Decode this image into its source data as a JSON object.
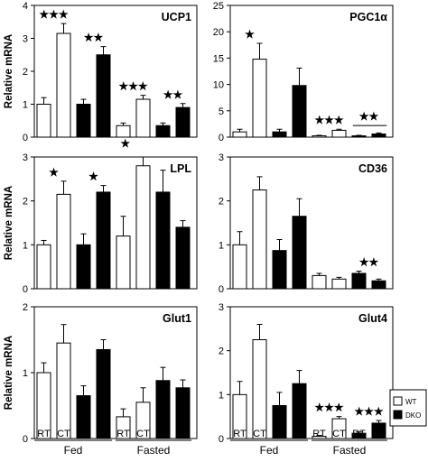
{
  "chart_data": {
    "type": "bar",
    "categories": [
      "RT",
      "CT",
      "RT",
      "CT",
      "RT",
      "CT",
      "RT",
      "CT"
    ],
    "groups": [
      "Fed",
      "Fasted"
    ],
    "series_colors": [
      "#ffffff",
      "#000000"
    ],
    "legend": [
      {
        "label": "WT",
        "color": "#ffffff"
      },
      {
        "label": "DKO",
        "color": "#000000"
      }
    ],
    "legend_position": "right",
    "grid": false,
    "panels": [
      {
        "title": "UCP1",
        "ylabel": "Relative mRNA",
        "ylim": [
          0,
          4
        ],
        "yticks": [
          "0",
          "1",
          "2",
          "3",
          "4"
        ],
        "values": [
          1.0,
          3.15,
          1.0,
          2.5,
          0.35,
          1.15,
          0.35,
          0.9
        ],
        "errors": [
          0.2,
          0.3,
          0.15,
          0.25,
          0.08,
          0.12,
          0.08,
          0.12
        ],
        "stars": [
          {
            "text": "★★★",
            "bar": 0.5
          },
          {
            "text": "★★",
            "bar": 2.5
          },
          {
            "text": "★★★",
            "bar": 4.5
          },
          {
            "text": "★★",
            "bar": 6.5
          }
        ]
      },
      {
        "title": "PGC1α",
        "ylabel": "",
        "ylim": [
          0,
          25
        ],
        "yticks": [
          "0",
          "5",
          "10",
          "15",
          "20",
          "25"
        ],
        "values": [
          1.0,
          14.8,
          1.0,
          9.8,
          0.25,
          1.3,
          0.25,
          0.6
        ],
        "errors": [
          0.5,
          3.0,
          0.5,
          3.3,
          0.1,
          0.2,
          0.1,
          0.2
        ],
        "stars": [
          {
            "text": "★",
            "bar": 0.5
          },
          {
            "text": "★★★",
            "bar": 4.5
          },
          {
            "text": "★★",
            "bar": 6.5,
            "bracket": [
              5.7,
              7.4
            ],
            "bracket_y": 2.2
          }
        ]
      },
      {
        "title": "LPL",
        "ylabel": "Relative mRNA",
        "ylim": [
          0,
          3
        ],
        "yticks": [
          "0",
          "1",
          "2",
          "3"
        ],
        "values": [
          1.0,
          2.15,
          1.0,
          2.2,
          1.2,
          2.8,
          2.2,
          1.4
        ],
        "errors": [
          0.1,
          0.3,
          0.25,
          0.15,
          0.45,
          0.3,
          0.5,
          0.15
        ],
        "stars": [
          {
            "text": "★",
            "bar": 0.5
          },
          {
            "text": "★",
            "bar": 2.5
          },
          {
            "text": "★",
            "bar": 4.1
          }
        ]
      },
      {
        "title": "CD36",
        "ylabel": "",
        "ylim": [
          0,
          3
        ],
        "yticks": [
          "0",
          "1",
          "2",
          "3"
        ],
        "values": [
          1.0,
          2.25,
          0.87,
          1.65,
          0.3,
          0.22,
          0.35,
          0.18
        ],
        "errors": [
          0.3,
          0.3,
          0.25,
          0.4,
          0.05,
          0.04,
          0.05,
          0.04
        ],
        "stars": [
          {
            "text": "★★",
            "bar": 6.5
          }
        ]
      },
      {
        "title": "Glut1",
        "ylabel": "Relative mRNA",
        "ylim": [
          0,
          2
        ],
        "yticks": [
          "0",
          "1",
          "2"
        ],
        "values": [
          1.0,
          1.45,
          0.65,
          1.35,
          0.33,
          0.55,
          0.88,
          0.77
        ],
        "errors": [
          0.15,
          0.28,
          0.15,
          0.15,
          0.12,
          0.22,
          0.2,
          0.12
        ],
        "stars": []
      },
      {
        "title": "Glut4",
        "ylabel": "",
        "ylim": [
          0,
          3
        ],
        "yticks": [
          "0",
          "1",
          "2",
          "3"
        ],
        "values": [
          1.0,
          2.25,
          0.75,
          1.25,
          0.05,
          0.45,
          0.12,
          0.35
        ],
        "errors": [
          0.3,
          0.35,
          0.3,
          0.3,
          0.02,
          0.05,
          0.03,
          0.06
        ],
        "stars": [
          {
            "text": "★★★",
            "bar": 4.5
          },
          {
            "text": "★★★",
            "bar": 6.5
          }
        ]
      }
    ]
  }
}
